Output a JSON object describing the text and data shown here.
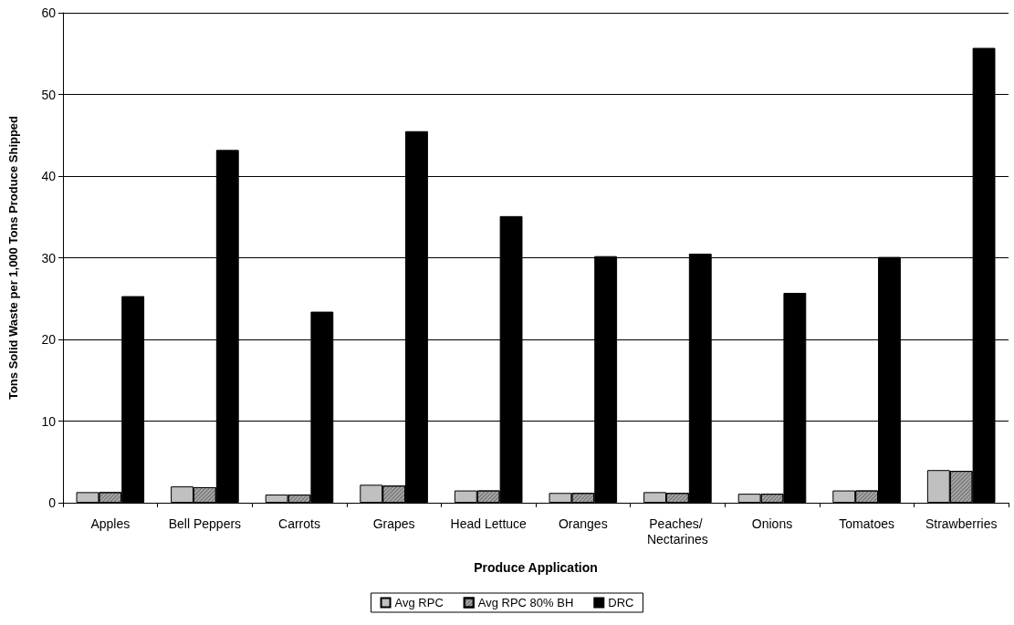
{
  "chart_data": {
    "type": "bar",
    "xlabel": "Produce Application",
    "ylabel": "Tons Solid Waste per 1,000 Tons Produce Shipped",
    "categories": [
      "Apples",
      "Bell Peppers",
      "Carrots",
      "Grapes",
      "Head Lettuce",
      "Oranges",
      "Peaches/ Nectarines",
      "Onions",
      "Tomatoes",
      "Strawberries"
    ],
    "series": [
      {
        "name": "Avg RPC",
        "color": "#c0c0c0",
        "values": [
          1.3,
          2.0,
          1.0,
          2.2,
          1.5,
          1.2,
          1.3,
          1.1,
          1.5,
          4.0
        ]
      },
      {
        "name": "Avg RPC 80% BH",
        "color": "#a6a6a6",
        "values": [
          1.3,
          1.9,
          1.0,
          2.1,
          1.5,
          1.2,
          1.2,
          1.1,
          1.5,
          3.9
        ]
      },
      {
        "name": "DRC",
        "color": "#000000",
        "values": [
          25.3,
          43.2,
          23.4,
          45.5,
          35.1,
          30.2,
          30.5,
          25.7,
          30.1,
          55.7
        ]
      }
    ],
    "ylim": [
      0,
      60
    ],
    "yticks": [
      0,
      10,
      20,
      30,
      40,
      50,
      60
    ],
    "grid": "y",
    "legend": "bottom"
  }
}
